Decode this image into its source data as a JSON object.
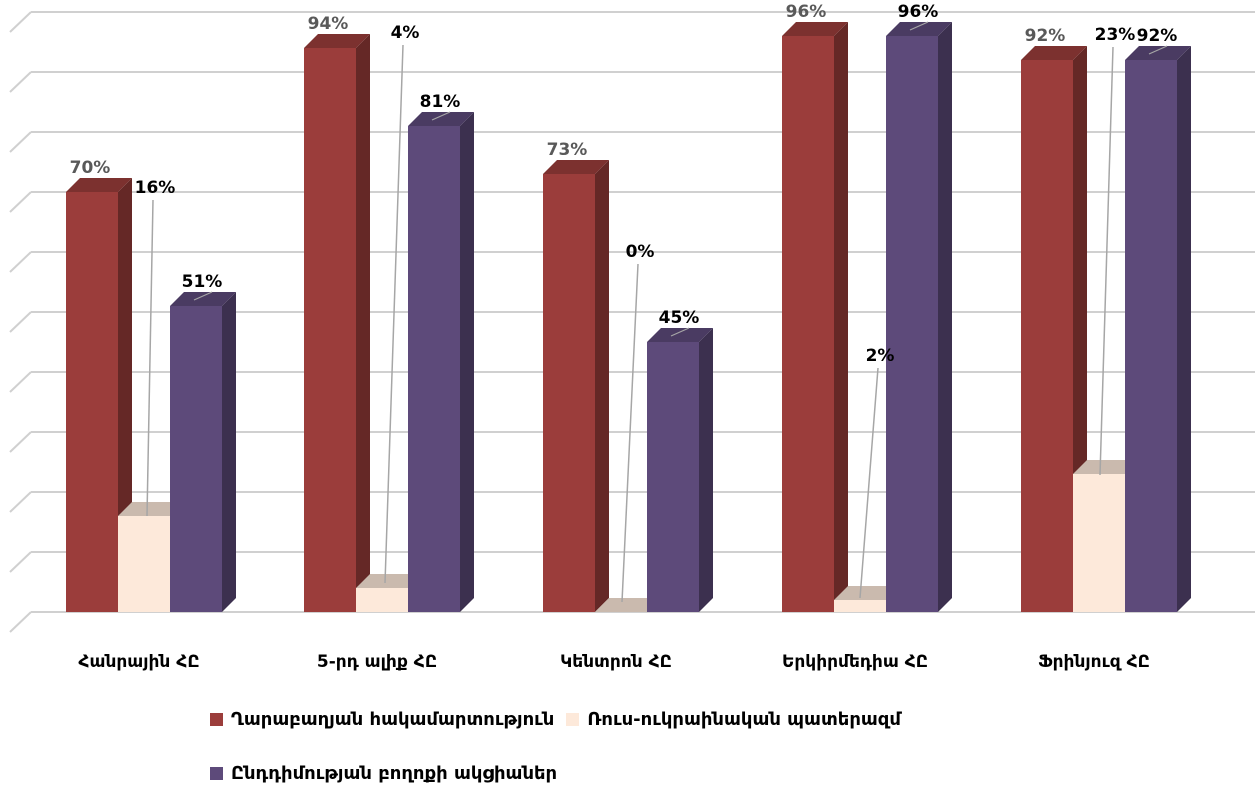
{
  "chart_data": {
    "type": "bar",
    "categories": [
      "Հանրային ՀԸ",
      "5-րդ ալիք ՀԸ",
      "Կենտրոն ՀԸ",
      "Երկիրմեդիա ՀԸ",
      "Ֆրինյուզ ՀԸ"
    ],
    "series": [
      {
        "name": "Ղարաբաղյան հակամարտություն",
        "color": "#9B3D3B",
        "values": [
          70,
          94,
          73,
          96,
          92
        ],
        "labels": [
          "70%",
          "94%",
          "73%",
          "96%",
          "92%"
        ]
      },
      {
        "name": "Ռուս-ուկրաինական պատերազմ",
        "color": "#FDE9DA",
        "values": [
          16,
          4,
          0,
          2,
          23
        ],
        "labels": [
          "16%",
          "4%",
          "0%",
          "2%",
          "23%"
        ]
      },
      {
        "name": "Ընդդիմության բողոքի ակցիաներ",
        "color": "#5D4A7A",
        "values": [
          51,
          81,
          45,
          96,
          92
        ],
        "labels": [
          "51%",
          "81%",
          "45%",
          "96%",
          "92%"
        ]
      }
    ],
    "ylim": [
      0,
      100
    ],
    "grid": true,
    "legend_position": "bottom",
    "three_d": true
  }
}
